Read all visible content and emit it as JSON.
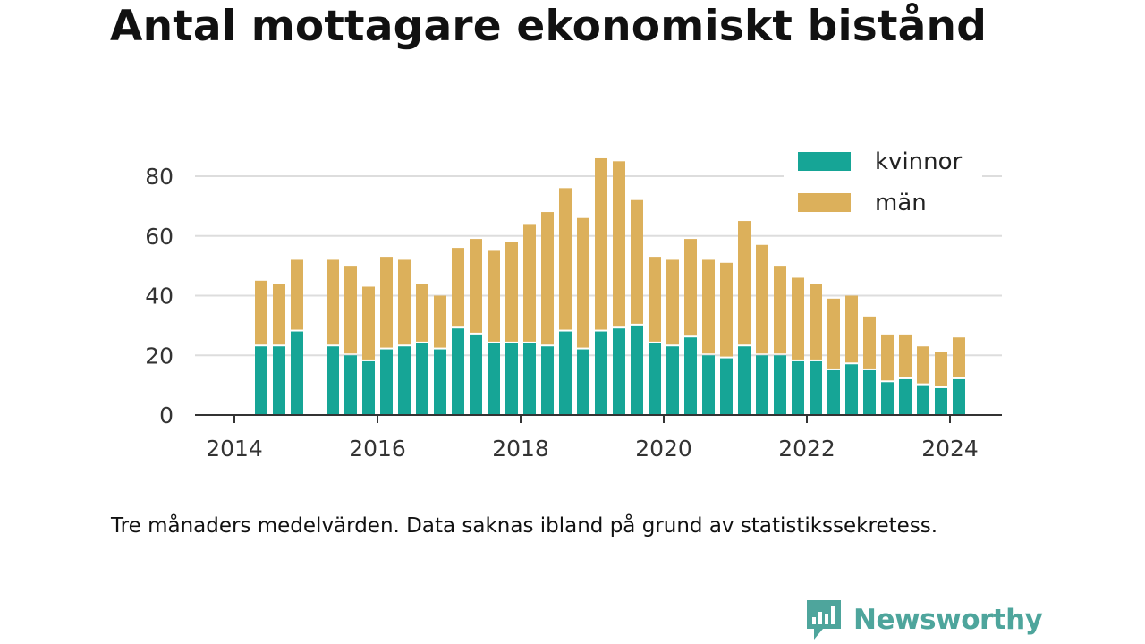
{
  "title": "Antal mottagare ekonomiskt bistånd",
  "note": "Tre månaders medelvärden. Data saknas ibland på grund av statistikssekretess.",
  "brand": {
    "name": "Newsworthy",
    "color": "#4ea59c"
  },
  "chart_data": {
    "type": "bar",
    "stacked": true,
    "x_unit": "quarter",
    "periods": [
      "2014Q2",
      "2014Q3",
      "2014Q4",
      "2015Q2",
      "2015Q3",
      "2015Q4",
      "2016Q1",
      "2016Q2",
      "2016Q3",
      "2016Q4",
      "2017Q1",
      "2017Q2",
      "2017Q3",
      "2017Q4",
      "2018Q1",
      "2018Q2",
      "2018Q3",
      "2018Q4",
      "2019Q1",
      "2019Q2",
      "2019Q3",
      "2019Q4",
      "2020Q1",
      "2020Q2",
      "2020Q3",
      "2020Q4",
      "2021Q1",
      "2021Q2",
      "2021Q3",
      "2021Q4",
      "2022Q1",
      "2022Q2",
      "2022Q3",
      "2022Q4",
      "2023Q1",
      "2023Q2",
      "2023Q3",
      "2023Q4",
      "2024Q1"
    ],
    "series": [
      {
        "name": "kvinnor",
        "color": "#16a596",
        "values": [
          23,
          23,
          28,
          23,
          20,
          18,
          22,
          23,
          24,
          22,
          29,
          27,
          24,
          24,
          24,
          23,
          28,
          22,
          28,
          29,
          30,
          24,
          23,
          26,
          20,
          19,
          23,
          20,
          20,
          18,
          18,
          15,
          17,
          15,
          11,
          12,
          10,
          9,
          12
        ]
      },
      {
        "name": "män",
        "color": "#dcb05b",
        "values": [
          22,
          21,
          24,
          29,
          30,
          25,
          31,
          29,
          20,
          18,
          27,
          32,
          31,
          34,
          40,
          45,
          48,
          44,
          58,
          56,
          42,
          29,
          29,
          33,
          32,
          32,
          42,
          37,
          30,
          28,
          26,
          24,
          23,
          18,
          16,
          15,
          13,
          12,
          14
        ]
      }
    ],
    "xticks": [
      "2014",
      "2016",
      "2018",
      "2020",
      "2022",
      "2024"
    ],
    "yticks": [
      0,
      20,
      40,
      60,
      80
    ],
    "ylim": [
      0,
      86
    ],
    "grid": true,
    "legend_position": "top-right"
  }
}
